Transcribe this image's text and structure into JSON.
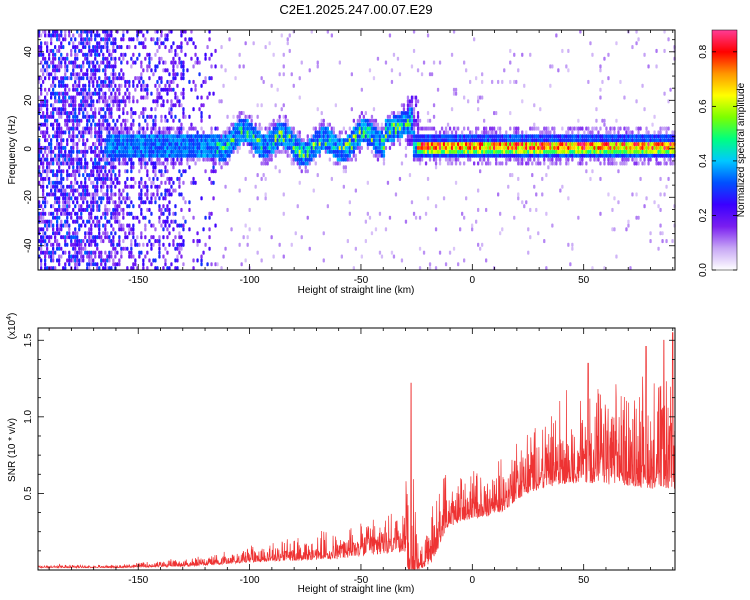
{
  "title": "C2E1.2025.247.00.07.E29",
  "chart_data": [
    {
      "type": "heatmap",
      "name": "spectrogram",
      "xlabel": "Height of straight line (km)",
      "ylabel": "Frequency (Hz)",
      "xlim": [
        -195,
        91
      ],
      "ylim": [
        -50,
        49
      ],
      "x_ticks": [
        -150,
        -100,
        -50,
        0,
        50
      ],
      "y_ticks": [
        -40,
        -20,
        0,
        20,
        40
      ],
      "x_tick_labels": [
        "-150",
        "-100",
        "-50",
        "0",
        "50"
      ],
      "y_tick_labels": [
        "-40",
        "-20",
        "0",
        "20",
        "40"
      ],
      "colorbar": {
        "label": "Normalized spectral amplitude",
        "range": [
          0.0,
          0.88
        ],
        "ticks": [
          0.0,
          0.2,
          0.4,
          0.6,
          0.8
        ],
        "tick_labels": [
          "0.0",
          "0.2",
          "0.4",
          "0.6",
          "0.8"
        ],
        "colormap": [
          "#ffffff",
          "#c7a6f5",
          "#7a1ef0",
          "#3a00ff",
          "#0050ff",
          "#00c8ff",
          "#00ff80",
          "#7cff00",
          "#ffff00",
          "#ff9600",
          "#ff0000",
          "#ff3c96"
        ]
      },
      "features": {
        "noise_region_x": [
          -195,
          -115
        ],
        "band_center_freq": 0,
        "band_half_width_hz": 5,
        "wiggle_region_x": [
          -115,
          -25
        ],
        "strong_line_region_x": [
          -25,
          91
        ],
        "spike_x": -27,
        "spike_freq_top": 22
      }
    },
    {
      "type": "line",
      "name": "snr",
      "xlabel": "Height of straight line (km)",
      "ylabel": "SNR (10 * v/v)",
      "y_multiplier_label": "(x10",
      "y_multiplier_exp": "4",
      "y_multiplier_close": ")",
      "xlim": [
        -195,
        91
      ],
      "ylim": [
        0,
        1.58
      ],
      "x_ticks": [
        -150,
        -100,
        -50,
        0,
        50
      ],
      "y_ticks": [
        0.5,
        1.0,
        1.5
      ],
      "x_tick_labels": [
        "-150",
        "-100",
        "-50",
        "0",
        "50"
      ],
      "y_tick_labels": [
        "0.5",
        "1.0",
        "1.5"
      ],
      "color": "#ee3333",
      "envelope": {
        "x": [
          -195,
          -160,
          -140,
          -125,
          -110,
          -100,
          -80,
          -60,
          -45,
          -35,
          -30,
          -27,
          -25,
          -22,
          -18,
          -12,
          -5,
          5,
          15,
          20,
          30,
          40,
          50,
          60,
          70,
          80,
          91
        ],
        "base": [
          0.02,
          0.02,
          0.03,
          0.04,
          0.06,
          0.08,
          0.1,
          0.12,
          0.16,
          0.18,
          0.22,
          0.22,
          0.1,
          0.04,
          0.15,
          0.35,
          0.4,
          0.42,
          0.48,
          0.56,
          0.64,
          0.7,
          0.72,
          0.72,
          0.72,
          0.72,
          0.72
        ],
        "amp": [
          0.01,
          0.01,
          0.02,
          0.03,
          0.04,
          0.06,
          0.08,
          0.1,
          0.12,
          0.14,
          0.2,
          0.95,
          0.22,
          0.05,
          0.2,
          0.18,
          0.16,
          0.16,
          0.18,
          0.2,
          0.22,
          0.28,
          0.3,
          0.32,
          0.34,
          0.38,
          0.4
        ]
      },
      "peaks": [
        {
          "x": -27.5,
          "y": 1.22
        },
        {
          "x": 52,
          "y": 1.35
        },
        {
          "x": 78,
          "y": 1.46
        },
        {
          "x": 86,
          "y": 1.5
        },
        {
          "x": 90,
          "y": 1.55
        }
      ]
    }
  ]
}
